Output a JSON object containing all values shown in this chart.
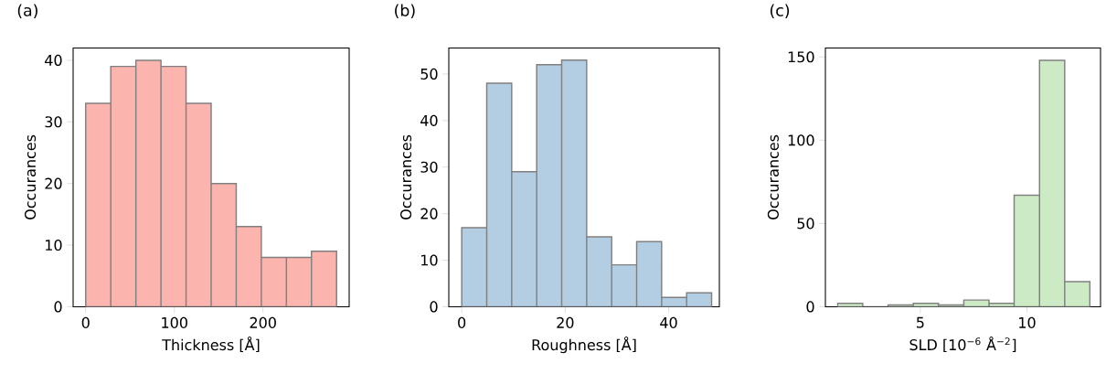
{
  "chart_data": [
    {
      "type": "histogram",
      "title": "(a)",
      "xlabel": "Thickness [Å]",
      "ylabel": "Occurances",
      "color": "#fbb4ae",
      "bins": [
        0,
        28.3,
        56.6,
        84.9,
        113.2,
        141.5,
        169.8,
        198.1,
        226.4,
        254.7,
        283
      ],
      "values": [
        33,
        39,
        40,
        39,
        33,
        20,
        13,
        8,
        8,
        9
      ],
      "xlim": [
        -14.2,
        297.2
      ],
      "ylim": [
        0,
        42
      ],
      "xticks": [
        0,
        100,
        200
      ],
      "yticks": [
        0,
        10,
        20,
        30,
        40
      ],
      "grid": false
    },
    {
      "type": "histogram",
      "title": "(b)",
      "xlabel": "Roughness [Å]",
      "ylabel": "Occurances",
      "color": "#b3cde3",
      "bins": [
        0,
        4.83,
        9.66,
        14.49,
        19.32,
        24.15,
        28.98,
        33.81,
        38.64,
        43.47,
        48.3
      ],
      "values": [
        17,
        48,
        29,
        52,
        53,
        15,
        9,
        14,
        2,
        3
      ],
      "xlim": [
        -2.5,
        49.8
      ],
      "ylim": [
        0,
        55.6
      ],
      "xticks": [
        0,
        20,
        40
      ],
      "yticks": [
        0,
        10,
        20,
        30,
        40,
        50
      ],
      "grid": false
    },
    {
      "type": "histogram",
      "title": "(c)",
      "xlabel": "SLD [10$^{−6}$ Å$^{−2}$]",
      "ylabel": "Occurances",
      "color": "#ccebc5",
      "bins": [
        1.12,
        2.3,
        3.49,
        4.67,
        5.85,
        7.04,
        8.22,
        9.4,
        10.59,
        11.77,
        12.95
      ],
      "values": [
        2,
        0,
        1,
        2,
        1,
        4,
        2,
        67,
        148,
        15
      ],
      "xlim": [
        0.55,
        13.45
      ],
      "ylim": [
        0,
        155.4
      ],
      "xticks": [
        5,
        10
      ],
      "yticks": [
        0,
        50,
        100,
        150
      ],
      "grid": false
    }
  ]
}
